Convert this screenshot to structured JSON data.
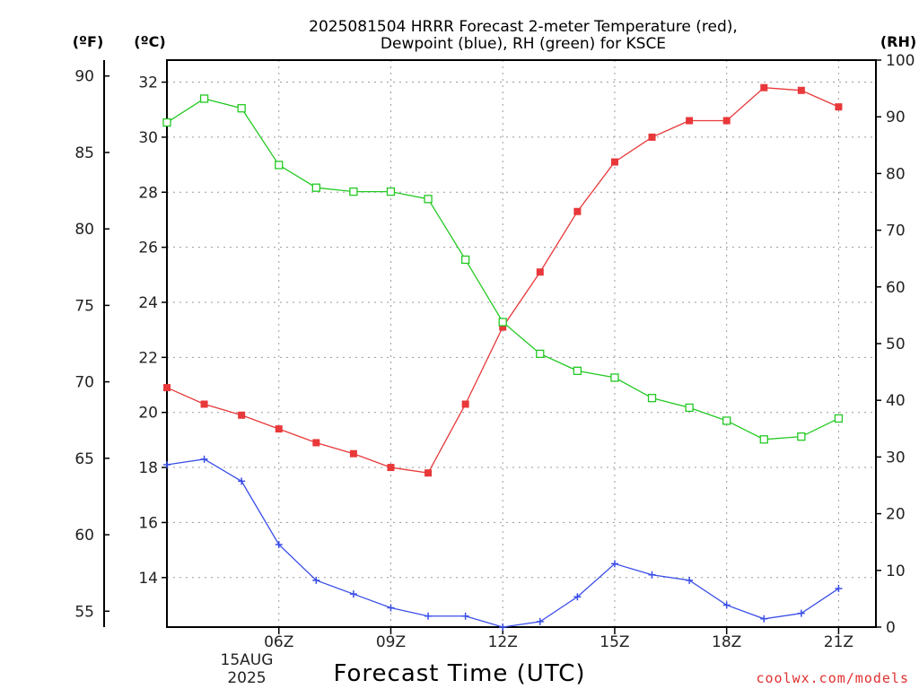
{
  "title_line1": "2025081504 HRRR Forecast 2-meter Temperature (red),",
  "title_line2": "Dewpoint (blue), RH (green) for KSCE",
  "unit_f": "(ºF)",
  "unit_c": "(ºC)",
  "unit_rh": "(RH)",
  "xlabel": "Forecast Time (UTC)",
  "date_line1": "15AUG",
  "date_line2": "2025",
  "credit": "coolwx.com/models",
  "colors": {
    "temperature": "#e8383a",
    "dewpoint": "#3a4ee8",
    "rh": "#22c922"
  },
  "chart_data": {
    "type": "line",
    "x_hours": [
      3,
      4,
      5,
      6,
      7,
      8,
      9,
      10,
      11,
      12,
      13,
      14,
      15,
      16,
      17,
      18,
      19,
      20,
      21,
      22
    ],
    "x_range": [
      3,
      22
    ],
    "x_ticks": [
      {
        "hour": 6,
        "label": "06Z"
      },
      {
        "hour": 9,
        "label": "09Z"
      },
      {
        "hour": 12,
        "label": "12Z"
      },
      {
        "hour": 15,
        "label": "15Z"
      },
      {
        "hour": 18,
        "label": "18Z"
      },
      {
        "hour": 21,
        "label": "21Z"
      }
    ],
    "y_left_celsius": {
      "range": [
        12.2,
        32.8
      ],
      "ticks": [
        14,
        16,
        18,
        20,
        22,
        24,
        26,
        28,
        30,
        32
      ]
    },
    "y_left_fahrenheit": {
      "ticks": [
        55,
        60,
        65,
        70,
        75,
        80,
        85,
        90
      ]
    },
    "y_right_rh": {
      "range": [
        0,
        100
      ],
      "ticks": [
        0,
        10,
        20,
        30,
        40,
        50,
        60,
        70,
        80,
        90,
        100
      ]
    },
    "grid": true,
    "series": [
      {
        "key": "temperature",
        "axis": "celsius",
        "marker": "filled-square",
        "values": [
          20.9,
          20.3,
          19.9,
          19.4,
          18.9,
          18.5,
          18.0,
          17.8,
          20.3,
          23.1,
          25.1,
          27.3,
          29.1,
          30.0,
          30.6,
          30.6,
          31.8,
          31.7,
          31.1,
          null
        ]
      },
      {
        "key": "dewpoint",
        "axis": "celsius",
        "marker": "plus",
        "values": [
          18.1,
          18.3,
          17.5,
          15.2,
          13.9,
          13.4,
          12.9,
          12.6,
          12.6,
          12.2,
          12.4,
          13.3,
          14.5,
          14.1,
          13.9,
          13.0,
          12.5,
          12.7,
          13.6,
          null
        ]
      },
      {
        "key": "rh",
        "axis": "rh",
        "marker": "open-square",
        "values": [
          89.0,
          93.2,
          91.5,
          81.5,
          77.5,
          76.8,
          76.8,
          75.5,
          64.8,
          53.8,
          48.2,
          45.2,
          44.0,
          40.4,
          38.7,
          36.4,
          33.1,
          33.6,
          36.8,
          null
        ]
      }
    ]
  }
}
